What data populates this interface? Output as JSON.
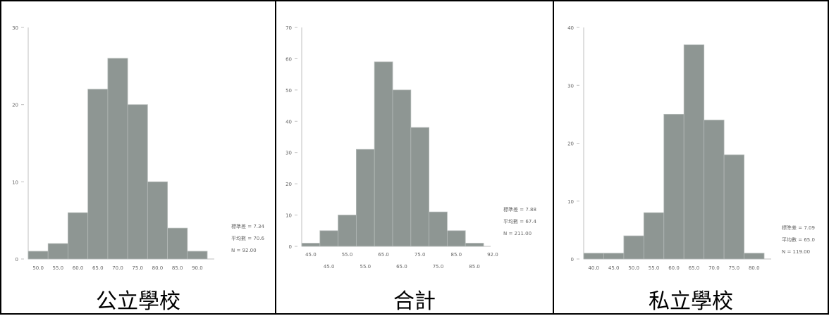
{
  "colors": {
    "bar": "#8e9693",
    "bar_edge": "#b4bab8",
    "text": "#6a6a6a",
    "border": "#000000",
    "axis": "#bfbfbf"
  },
  "chart_data": [
    {
      "type": "bar",
      "caption": "公立學校",
      "bins": [
        50.0,
        55.0,
        60.0,
        65.0,
        70.0,
        75.0,
        80.0,
        85.0,
        90.0
      ],
      "values": [
        1,
        2,
        6,
        22,
        26,
        20,
        10,
        4,
        1
      ],
      "ylim": [
        0,
        30
      ],
      "yticks": [
        0,
        10,
        20,
        30
      ],
      "xtick_labels": [
        "50.0",
        "55.0",
        "60.0",
        "65.0",
        "70.0",
        "75.0",
        "80.0",
        "85.0",
        "90.0"
      ],
      "stats": [
        "標準差 = 7.34",
        "平均數 = 70.6",
        "N = 92.00"
      ]
    },
    {
      "type": "bar",
      "caption": "合計",
      "bins": [
        45.0,
        50.0,
        55.0,
        60.0,
        65.0,
        70.0,
        75.0,
        80.0,
        85.0,
        90.0
      ],
      "values": [
        1,
        5,
        10,
        31,
        59,
        50,
        38,
        11,
        5,
        1
      ],
      "ylim": [
        0,
        70
      ],
      "yticks": [
        0,
        10,
        20,
        30,
        40,
        50,
        60,
        70
      ],
      "xtick_labels_upper": [
        "45.0",
        "55.0",
        "65.0",
        "75.0",
        "85.0",
        "92.0"
      ],
      "xtick_labels_lower": [
        "45.0",
        "55.0",
        "65.0",
        "75.0",
        "85.0"
      ],
      "stats": [
        "標準差 = 7.88",
        "平均數 = 67.4",
        "N = 211.00"
      ]
    },
    {
      "type": "bar",
      "caption": "私立學校",
      "bins": [
        40.0,
        45.0,
        50.0,
        55.0,
        60.0,
        65.0,
        70.0,
        75.0,
        80.0
      ],
      "values": [
        1,
        1,
        4,
        8,
        25,
        37,
        24,
        18,
        1
      ],
      "ylim": [
        0,
        40
      ],
      "yticks": [
        0,
        10,
        20,
        30,
        40
      ],
      "xtick_labels": [
        "40.0",
        "45.0",
        "50.0",
        "55.0",
        "60.0",
        "65.0",
        "70.0",
        "75.0",
        "80.0"
      ],
      "stats": [
        "標準差 = 7.09",
        "平均數 = 65.0",
        "N = 119.00"
      ]
    }
  ]
}
